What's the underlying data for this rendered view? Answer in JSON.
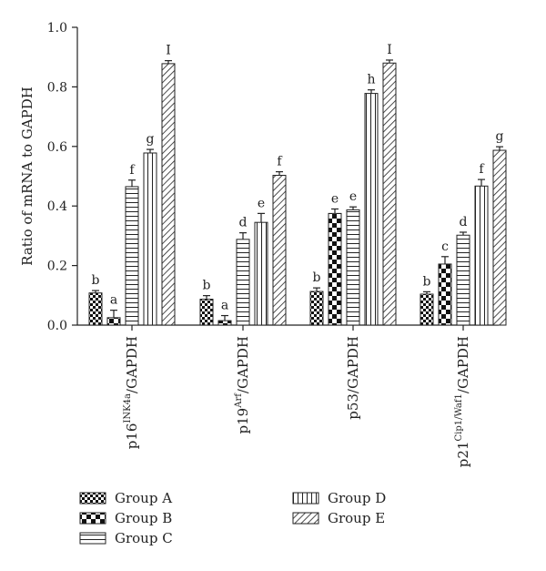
{
  "chart_data": {
    "type": "bar",
    "title": "",
    "xlabel": "",
    "ylabel": "Ratio of mRNA to GAPDH",
    "ylim": [
      0,
      1.0
    ],
    "yticks": [
      "0.0",
      "0.2",
      "0.4",
      "0.6",
      "0.8",
      "1.0"
    ],
    "ytick_values": [
      0,
      0.2,
      0.4,
      0.6,
      0.8,
      1.0
    ],
    "grid": false,
    "legend_position": "bottom",
    "categories": [
      {
        "name": "p16INK4a/GAPDH",
        "base": "p16",
        "sup": "INK4a",
        "suffix": "/GAPDH"
      },
      {
        "name": "p19Arf/GAPDH",
        "base": "p19",
        "sup": "Arf",
        "suffix": "/GAPDH"
      },
      {
        "name": "p53/GAPDH",
        "base": "p53/GAPDH",
        "sup": "",
        "suffix": ""
      },
      {
        "name": "p21Cip1/Waf1/GAPDH",
        "base": "p21",
        "sup": "Cip1/Waf1",
        "suffix": "/GAPDH"
      }
    ],
    "series": [
      {
        "name": "Group A",
        "pattern": "checker-small",
        "values": [
          0.108,
          0.087,
          0.113,
          0.104
        ],
        "errors": [
          0.008,
          0.012,
          0.012,
          0.008
        ],
        "labels": [
          "b",
          "b",
          "b",
          "b"
        ]
      },
      {
        "name": "Group B",
        "pattern": "checker-large",
        "values": [
          0.025,
          0.015,
          0.375,
          0.205
        ],
        "errors": [
          0.025,
          0.017,
          0.015,
          0.025
        ],
        "labels": [
          "a",
          "a",
          "e",
          "c"
        ]
      },
      {
        "name": "Group C",
        "pattern": "horizontal",
        "values": [
          0.465,
          0.288,
          0.387,
          0.302
        ],
        "errors": [
          0.022,
          0.022,
          0.01,
          0.01
        ],
        "labels": [
          "f",
          "d",
          "e",
          "d"
        ]
      },
      {
        "name": "Group D",
        "pattern": "vertical",
        "values": [
          0.578,
          0.345,
          0.778,
          0.467
        ],
        "errors": [
          0.012,
          0.03,
          0.012,
          0.022
        ],
        "labels": [
          "g",
          "e",
          "h",
          "f"
        ]
      },
      {
        "name": "Group E",
        "pattern": "diagonal",
        "values": [
          0.878,
          0.503,
          0.88,
          0.587
        ],
        "errors": [
          0.01,
          0.012,
          0.01,
          0.012
        ],
        "labels": [
          "I",
          "f",
          "I",
          "g"
        ]
      }
    ]
  }
}
